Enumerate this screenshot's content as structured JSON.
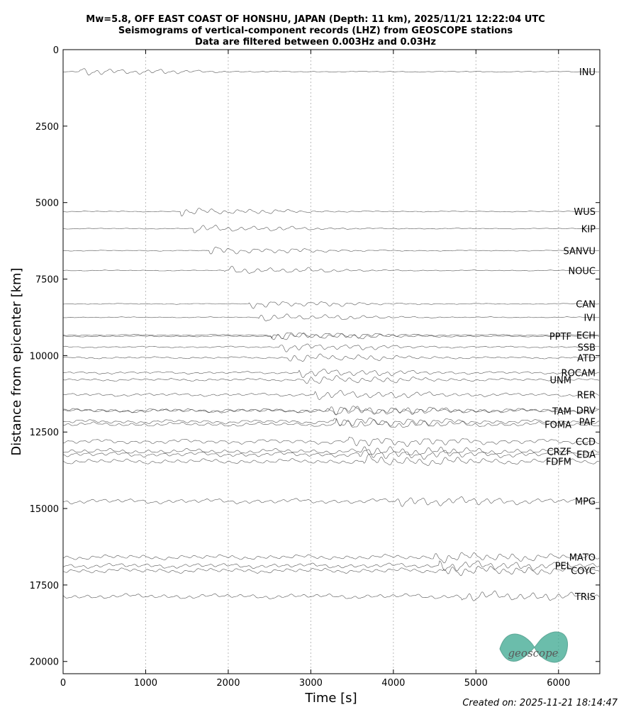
{
  "chart_data": {
    "type": "record_section",
    "title": [
      "Mw=5.8, OFF EAST COAST OF HONSHU, JAPAN (Depth: 11 km), 2025/11/21 12:22:04 UTC",
      "Seismograms of vertical-component records (LHZ) from GEOSCOPE stations",
      "Data are filtered between 0.003Hz and 0.03Hz"
    ],
    "x_label": "Time [s]",
    "y_label": "Distance from epicenter [km]",
    "xlim": [
      0,
      6500
    ],
    "ylim": [
      0,
      20400
    ],
    "xticks": [
      0,
      1000,
      2000,
      3000,
      4000,
      5000,
      6000
    ],
    "yticks": [
      0,
      2500,
      5000,
      7500,
      10000,
      12500,
      15000,
      17500,
      20000
    ],
    "y_inverted": true,
    "grid": true,
    "color": "#555555",
    "stations": [
      {
        "name": "INU",
        "distance": 720
      },
      {
        "name": "WUS",
        "distance": 5290
      },
      {
        "name": "KIP",
        "distance": 5850
      },
      {
        "name": "SANVU",
        "distance": 6570
      },
      {
        "name": "NOUC",
        "distance": 7220
      },
      {
        "name": "CAN",
        "distance": 8310
      },
      {
        "name": "IVI",
        "distance": 8750
      },
      {
        "name": "ECH",
        "distance": 9330
      },
      {
        "name": "PPTF",
        "distance": 9370
      },
      {
        "name": "SSB",
        "distance": 9720
      },
      {
        "name": "ATD",
        "distance": 10070
      },
      {
        "name": "ROCAM",
        "distance": 10560
      },
      {
        "name": "UNM",
        "distance": 10790
      },
      {
        "name": "RER",
        "distance": 11280
      },
      {
        "name": "DRV",
        "distance": 11790
      },
      {
        "name": "TAM",
        "distance": 11810
      },
      {
        "name": "PAF",
        "distance": 12160
      },
      {
        "name": "FOMA",
        "distance": 12250
      },
      {
        "name": "CCD",
        "distance": 12810
      },
      {
        "name": "CRZF",
        "distance": 13130
      },
      {
        "name": "EDA",
        "distance": 13230
      },
      {
        "name": "FDFM",
        "distance": 13460
      },
      {
        "name": "MPG",
        "distance": 14760
      },
      {
        "name": "MATO",
        "distance": 16590
      },
      {
        "name": "PEL",
        "distance": 16870
      },
      {
        "name": "COYC",
        "distance": 17030
      },
      {
        "name": "TRIS",
        "distance": 17870
      }
    ],
    "logo": "geoscope",
    "footer": "Created on: 2025-11-21 18:14:47"
  }
}
